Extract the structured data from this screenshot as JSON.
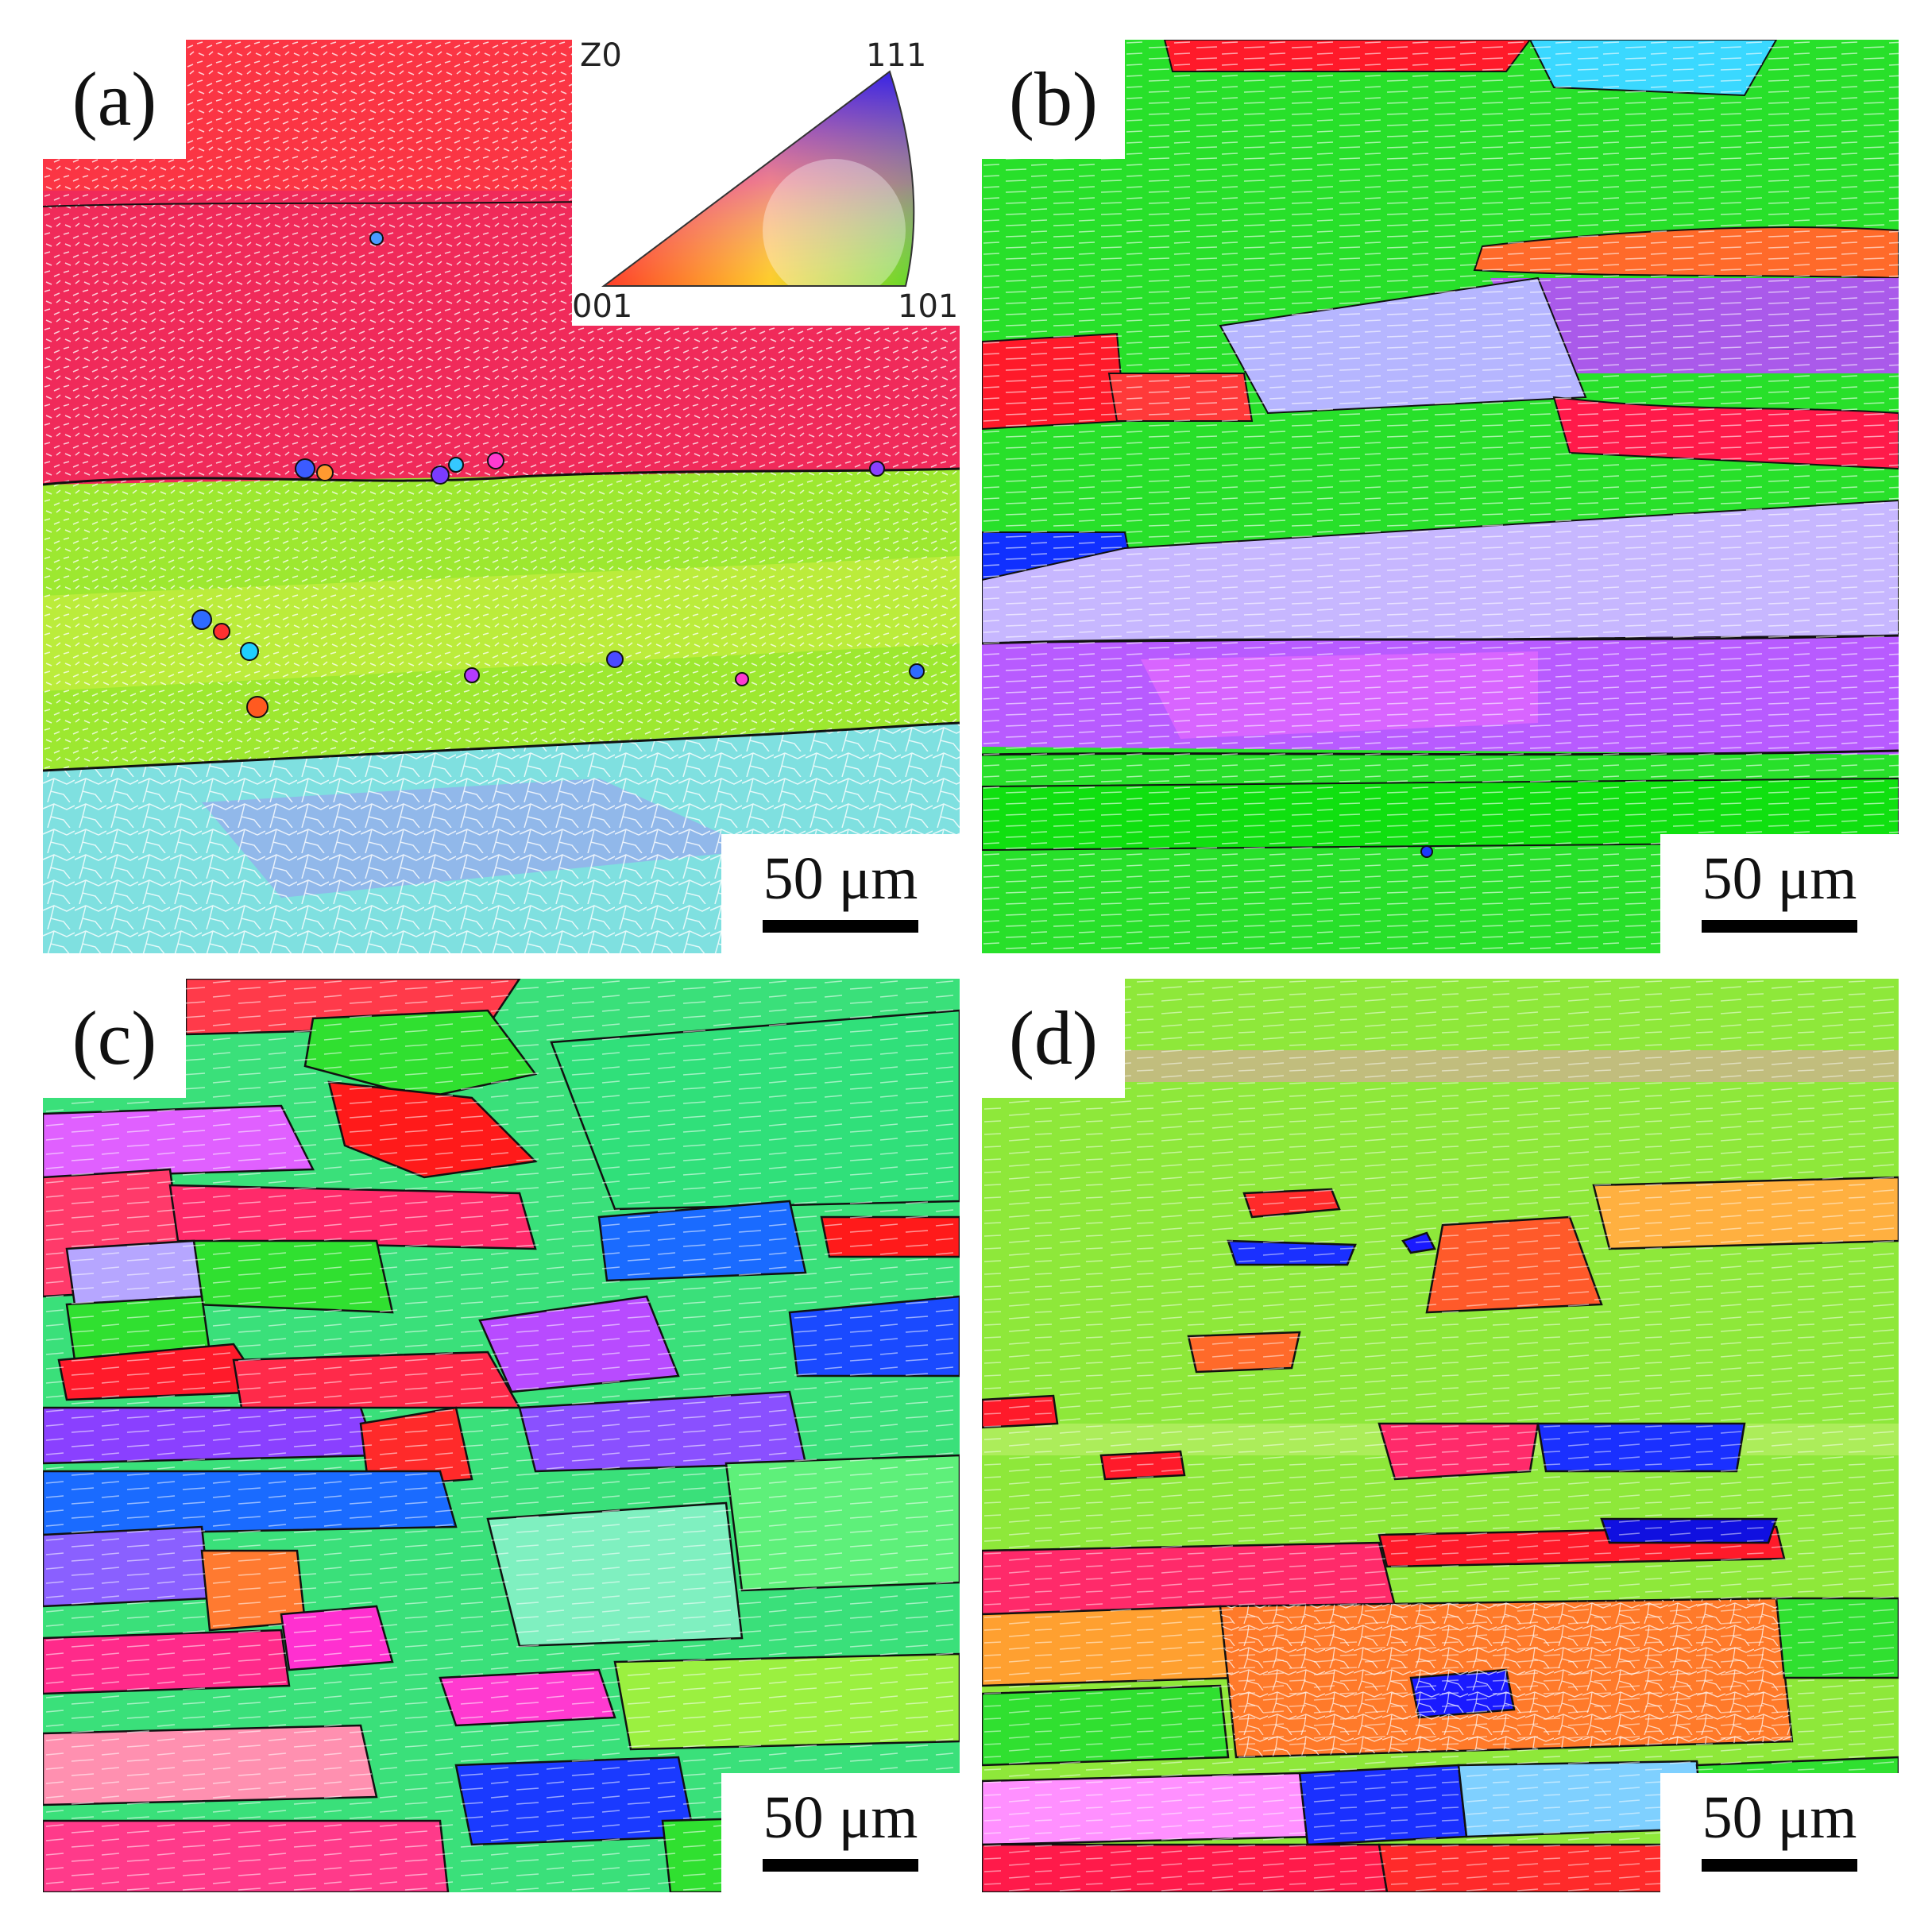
{
  "panels": [
    {
      "label": "(a)",
      "scale_bar": "50 μm"
    },
    {
      "label": "(b)",
      "scale_bar": "50 μm"
    },
    {
      "label": "(c)",
      "scale_bar": "50 μm"
    },
    {
      "label": "(d)",
      "scale_bar": "50 μm"
    }
  ],
  "legend": {
    "reference": "Z0",
    "corner_111": "111",
    "corner_001": "001",
    "corner_101": "101"
  },
  "colors": {
    "orientation_001": "#ff1a1a",
    "orientation_101": "#22e022",
    "orientation_111": "#1010e0",
    "grain_boundary": "#111111",
    "subgrain_boundary": "#ffffff"
  }
}
